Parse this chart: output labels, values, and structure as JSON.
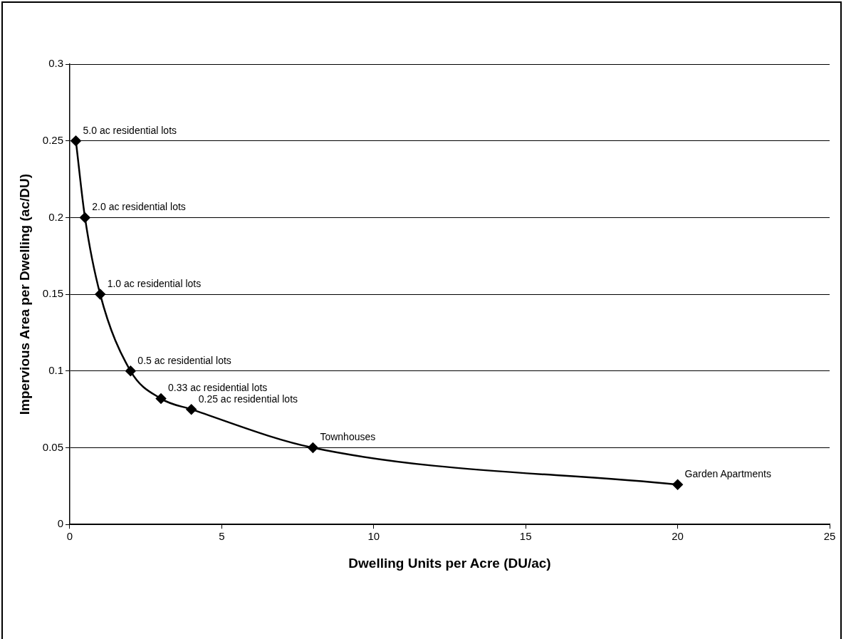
{
  "chart_data": {
    "type": "line",
    "xlabel": "Dwelling Units per Acre (DU/ac)",
    "ylabel": "Impervious Area per Dwelling (ac/DU)",
    "x": [
      0.2,
      0.5,
      1,
      2,
      3,
      4,
      8,
      20
    ],
    "series": [
      {
        "color": "#000000",
        "values": [
          0.25,
          0.2,
          0.15,
          0.1,
          0.082,
          0.075,
          0.05,
          0.026
        ]
      }
    ],
    "xlim": [
      0,
      25
    ],
    "xticks": [
      0,
      5,
      10,
      15,
      20,
      25
    ],
    "ylim": [
      0,
      0.3
    ],
    "yticks": [
      0,
      0.05,
      0.1,
      0.15,
      0.2,
      0.25,
      0.3
    ],
    "grid": "y",
    "legend": false,
    "marker": "diamond",
    "line_style": "solid",
    "annotations": [
      {
        "text": "5.0 ac residential lots",
        "x": 0.2,
        "y": 0.25
      },
      {
        "text": "2.0 ac residential lots",
        "x": 0.5,
        "y": 0.2
      },
      {
        "text": "1.0 ac residential lots",
        "x": 1,
        "y": 0.15
      },
      {
        "text": "0.5 ac residential lots",
        "x": 2,
        "y": 0.1
      },
      {
        "text": "0.33 ac residential lots",
        "x": 3,
        "y": 0.082
      },
      {
        "text": "0.25 ac residential lots",
        "x": 4,
        "y": 0.075
      },
      {
        "text": "Townhouses",
        "x": 8,
        "y": 0.05
      },
      {
        "text": "Garden Apartments",
        "x": 20,
        "y": 0.026
      }
    ]
  }
}
